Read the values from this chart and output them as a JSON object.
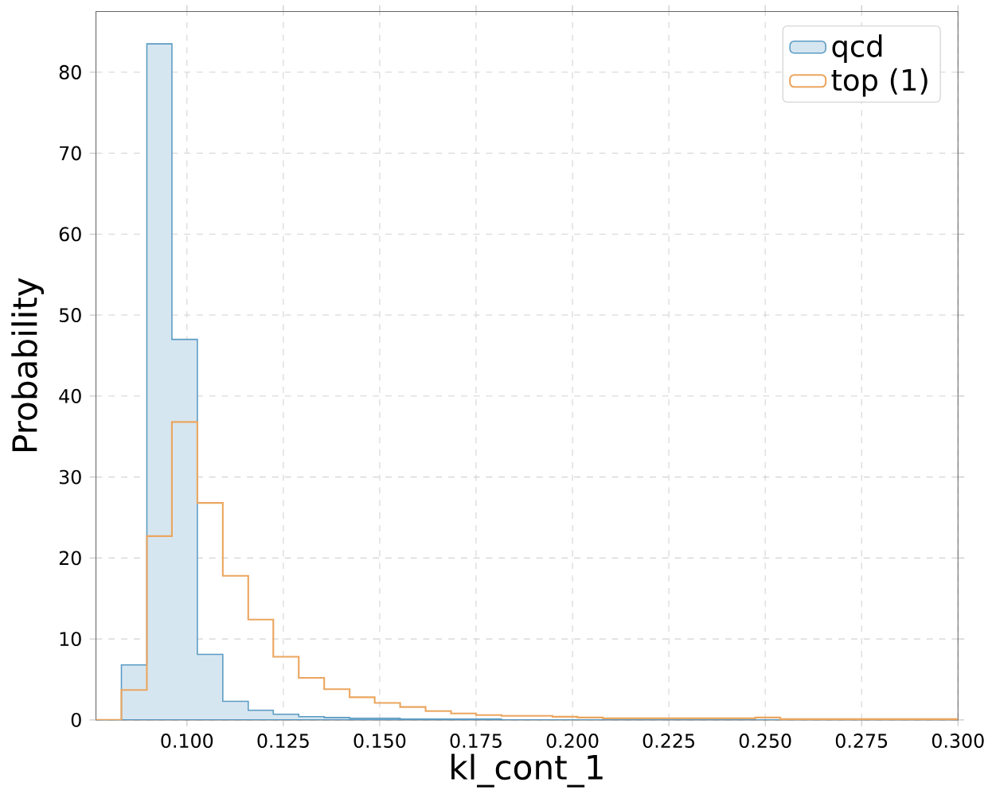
{
  "chart_data": {
    "type": "histogram",
    "xlabel": "kl_cont_1",
    "ylabel": "Probability",
    "bins": [
      0.0764,
      0.083,
      0.0896,
      0.0961,
      0.1027,
      0.1093,
      0.1159,
      0.1224,
      0.129,
      0.1356,
      0.1422,
      0.1487,
      0.1553,
      0.1619,
      0.1685,
      0.175,
      0.1816,
      0.1882,
      0.1948,
      0.2013,
      0.2079,
      0.2145,
      0.2211,
      0.2276,
      0.2342,
      0.2408,
      0.2474,
      0.2539,
      0.2605,
      0.2671,
      0.2737,
      0.2802,
      0.2868,
      0.2934,
      0.3
    ],
    "series": [
      {
        "name": "qcd",
        "color": "#5b9bc4",
        "values": [
          0,
          6.8,
          83.5,
          47,
          8.1,
          2.3,
          1.2,
          0.7,
          0.4,
          0.3,
          0.2,
          0.2,
          0.1,
          0.1,
          0.1,
          0.1,
          0,
          0,
          0,
          0,
          0,
          0,
          0,
          0,
          0,
          0,
          0,
          0,
          0,
          0,
          0,
          0,
          0,
          0
        ]
      },
      {
        "name": "top (1)",
        "color": "#eba65f",
        "values": [
          0,
          3.7,
          22.7,
          36.8,
          26.8,
          17.8,
          12.4,
          7.8,
          5.2,
          3.8,
          2.8,
          2.1,
          1.6,
          1.1,
          0.8,
          0.6,
          0.5,
          0.5,
          0.4,
          0.3,
          0.2,
          0.2,
          0.2,
          0.2,
          0.2,
          0.2,
          0.3,
          0.1,
          0.1,
          0.1,
          0.1,
          0.1,
          0.1,
          0.1
        ]
      }
    ],
    "xlim": [
      0.0764,
      0.3
    ],
    "ylim": [
      0,
      87.5
    ],
    "xticks": [
      {
        "value": 0.1,
        "label": "0.100"
      },
      {
        "value": 0.125,
        "label": "0.125"
      },
      {
        "value": 0.15,
        "label": "0.150"
      },
      {
        "value": 0.175,
        "label": "0.175"
      },
      {
        "value": 0.2,
        "label": "0.200"
      },
      {
        "value": 0.225,
        "label": "0.225"
      },
      {
        "value": 0.25,
        "label": "0.250"
      },
      {
        "value": 0.275,
        "label": "0.275"
      },
      {
        "value": 0.3,
        "label": "0.300"
      }
    ],
    "yticks": [
      0,
      10,
      20,
      30,
      40,
      50,
      60,
      70,
      80
    ],
    "grid": true,
    "legend": "top right"
  }
}
